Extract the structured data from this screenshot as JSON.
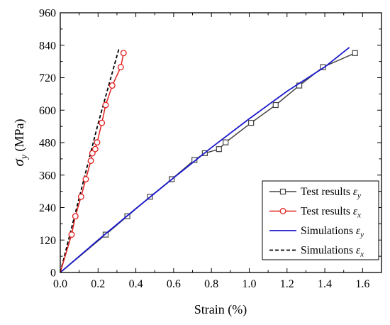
{
  "chart_data": {
    "type": "line",
    "xlabel": "Strain (%)",
    "ylabel": "σy (MPa)",
    "xlim": [
      0.0,
      1.7
    ],
    "ylim": [
      0,
      960
    ],
    "x_ticks": [
      "0.0",
      "0.2",
      "0.4",
      "0.6",
      "0.8",
      "1.0",
      "1.2",
      "1.4",
      "1.6"
    ],
    "y_ticks": [
      "0",
      "120",
      "240",
      "360",
      "480",
      "600",
      "720",
      "840",
      "960"
    ],
    "grid": false,
    "legend_position": "bottom-right",
    "series": [
      {
        "name": "Test results εy",
        "label_main": "Test results ",
        "label_sub": "y",
        "color": "#444444",
        "marker": "square",
        "dash": "solid",
        "points": [
          [
            0.0,
            0
          ],
          [
            0.24,
            140
          ],
          [
            0.355,
            208
          ],
          [
            0.475,
            280
          ],
          [
            0.59,
            345
          ],
          [
            0.71,
            416
          ],
          [
            0.765,
            441
          ],
          [
            0.84,
            456
          ],
          [
            0.875,
            481
          ],
          [
            1.01,
            553
          ],
          [
            1.14,
            619
          ],
          [
            1.265,
            691
          ],
          [
            1.39,
            759
          ],
          [
            1.56,
            811
          ]
        ]
      },
      {
        "name": "Test results εx",
        "label_main": "Test results ",
        "label_sub": "x",
        "color": "#e02020",
        "marker": "circle",
        "dash": "solid",
        "points": [
          [
            0.0,
            0
          ],
          [
            0.06,
            140
          ],
          [
            0.08,
            208
          ],
          [
            0.11,
            280
          ],
          [
            0.135,
            345
          ],
          [
            0.162,
            413
          ],
          [
            0.17,
            441
          ],
          [
            0.185,
            456
          ],
          [
            0.195,
            481
          ],
          [
            0.22,
            553
          ],
          [
            0.24,
            619
          ],
          [
            0.275,
            691
          ],
          [
            0.32,
            759
          ],
          [
            0.335,
            811
          ]
        ]
      },
      {
        "name": "Simulations εy",
        "label_main": "Simulations ",
        "label_sub": "y",
        "color": "#1a1acc",
        "marker": "none",
        "dash": "solid",
        "points": [
          [
            0.0,
            0
          ],
          [
            0.2,
            120
          ],
          [
            0.4,
            236
          ],
          [
            0.6,
            350
          ],
          [
            0.8,
            462
          ],
          [
            1.0,
            568
          ],
          [
            1.2,
            670
          ],
          [
            1.4,
            760
          ],
          [
            1.53,
            832
          ]
        ]
      },
      {
        "name": "Simulations εx",
        "label_main": "Simulations ",
        "label_sub": "x",
        "color": "#000000",
        "marker": "none",
        "dash": "dashed",
        "points": [
          [
            0.0,
            0
          ],
          [
            0.1,
            275
          ],
          [
            0.2,
            550
          ],
          [
            0.31,
            826
          ]
        ]
      }
    ]
  }
}
